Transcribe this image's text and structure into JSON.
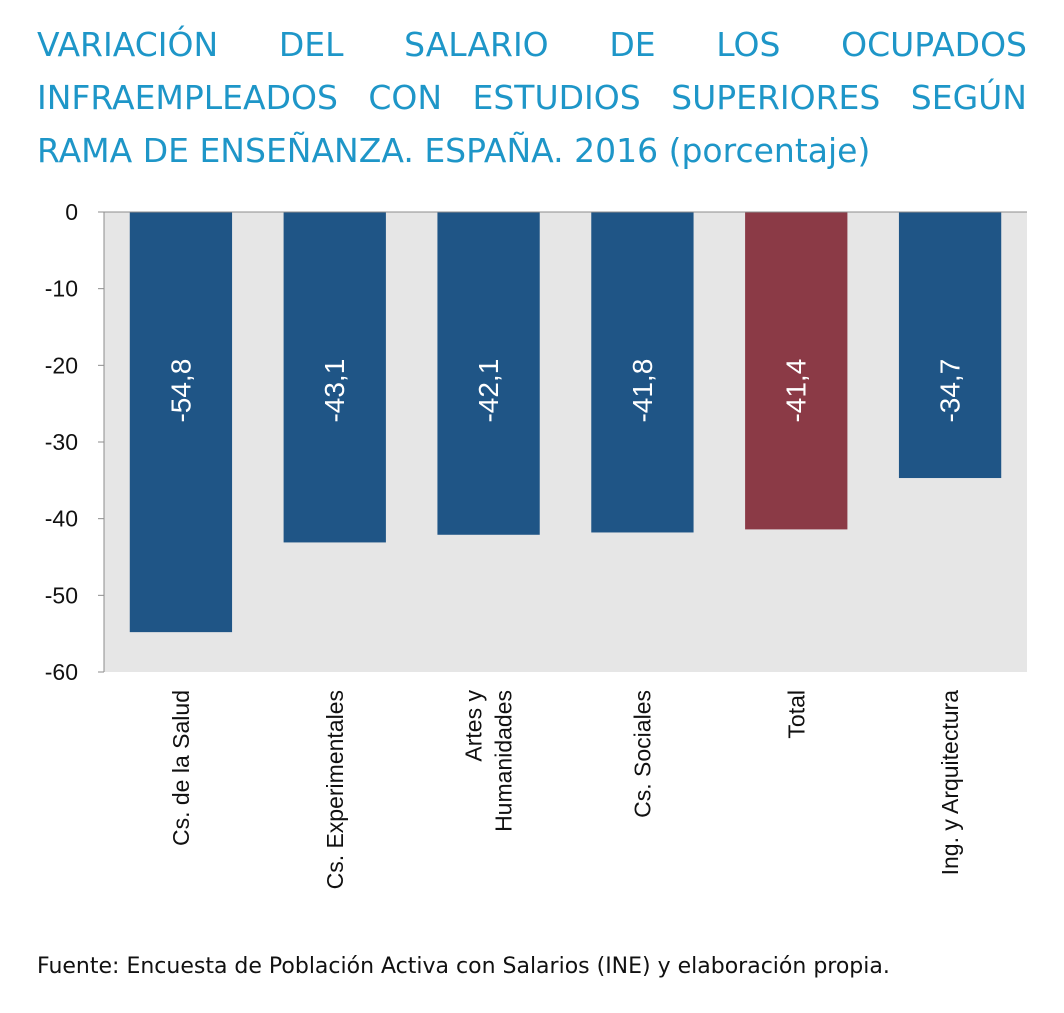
{
  "chart_data": {
    "type": "bar",
    "title": "VARIACIÓN DEL SALARIO DE LOS OCUPADOS INFRAEMPLEADOS CON ESTUDIOS SUPERIORES SEGÚN RAMA DE ENSEÑANZA. ESPAÑA. 2016 (porcentaje)",
    "categories": [
      [
        "Cs. de la Salud"
      ],
      [
        "Cs. Experimentales"
      ],
      [
        "Artes y",
        "Humanidades"
      ],
      [
        "Cs. Sociales"
      ],
      [
        "Total"
      ],
      [
        "Ing. y Arquitectura"
      ]
    ],
    "values": [
      -54.8,
      -43.1,
      -42.1,
      -41.8,
      -41.4,
      -34.7
    ],
    "data_labels": [
      "-54,8",
      "-43,1",
      "-42,1",
      "-41,8",
      "-41,4",
      "-34,7"
    ],
    "bar_colors": [
      "#1f5586",
      "#1f5586",
      "#1f5586",
      "#1f5586",
      "#8b3a46",
      "#1f5586"
    ],
    "ylim": [
      -60,
      0
    ],
    "yticks": [
      0,
      -10,
      -20,
      -30,
      -40,
      -50,
      -60
    ],
    "ytick_labels": [
      "0",
      "-10",
      "-20",
      "-30",
      "-40",
      "-50",
      "-60"
    ],
    "grid": false,
    "legend": "none",
    "plot_background": "#e6e6e6",
    "data_label_color": "#ffffff",
    "xlabel": "",
    "ylabel": ""
  },
  "title_color": "#1e96c8",
  "source_text": "Fuente: Encuesta de Población Activa con Salarios (INE) y elaboración propia."
}
